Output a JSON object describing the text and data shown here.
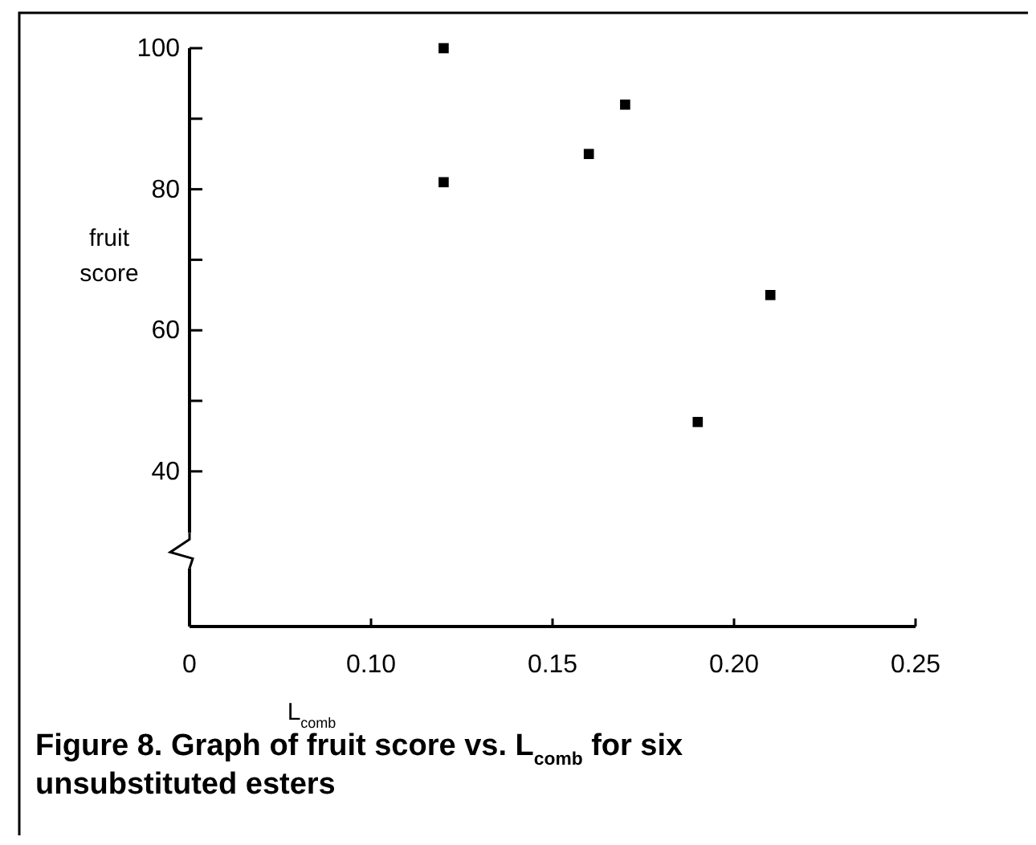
{
  "chart_data": {
    "type": "scatter",
    "xlabel": "L$_{comb}$",
    "ylabel": "fruit\nscore",
    "annotations": [
      "Figure 8. Graph of fruit score vs. L$_{comb}$ for six unsubstituted esters"
    ],
    "x": [
      0.12,
      0.12,
      0.16,
      0.17,
      0.19,
      0.21
    ],
    "values": [
      100,
      81,
      85,
      92,
      47,
      65
    ],
    "color": "#000000",
    "marker": "square",
    "xlim": [
      0.05,
      0.25
    ],
    "xticks": [
      {
        "value": 0.05,
        "label": "0"
      },
      {
        "value": 0.1,
        "label": "0.10"
      },
      0.15,
      {
        "value": 0.2,
        "label": "0.20"
      },
      0.25
    ],
    "ylim": [
      18,
      100
    ],
    "yticks": [
      40,
      {
        "value": 50,
        "label": null
      },
      60,
      {
        "value": 70,
        "label": null
      },
      80,
      {
        "value": 90,
        "label": null
      },
      100
    ],
    "grid": false
  }
}
